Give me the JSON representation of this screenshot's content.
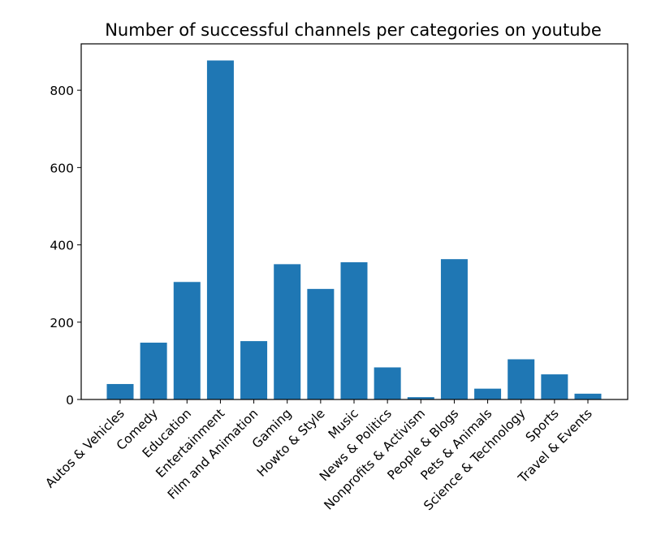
{
  "chart_data": {
    "type": "bar",
    "title": "Number of successful channels per categories on youtube",
    "xlabel": "",
    "ylabel": "",
    "categories": [
      "Autos & Vehicles",
      "Comedy",
      "Education",
      "Entertainment",
      "Film and Animation",
      "Gaming",
      "Howto & Style",
      "Music",
      "News & Politics",
      "Nonprofits & Activism",
      "People & Blogs",
      "Pets & Animals",
      "Science & Technology",
      "Sports",
      "Travel & Events"
    ],
    "values": [
      40,
      147,
      304,
      877,
      151,
      350,
      286,
      355,
      83,
      6,
      363,
      28,
      104,
      65,
      15
    ],
    "ylim": [
      0,
      920
    ],
    "yticks": [
      0,
      200,
      400,
      600,
      800
    ],
    "bar_color": "#1f77b4",
    "grid": false,
    "legend": "none"
  }
}
